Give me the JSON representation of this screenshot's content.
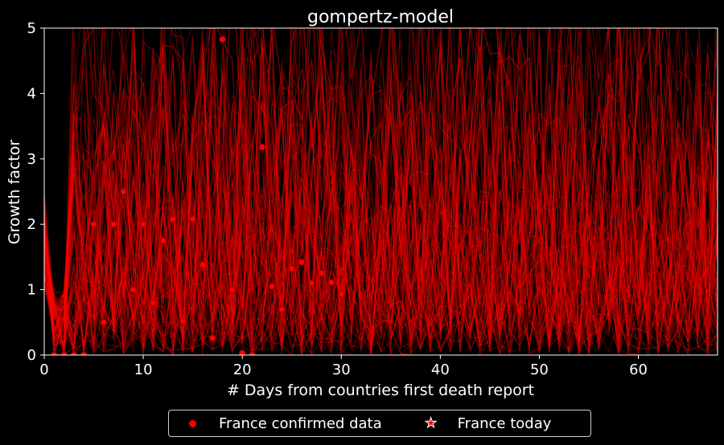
{
  "chart_data": {
    "type": "line",
    "title": "gompertz-model",
    "xlabel": "# Days from countries first death report",
    "ylabel": "Growth factor",
    "xlim": [
      0,
      68
    ],
    "ylim": [
      0,
      5
    ],
    "xticks": [
      0,
      10,
      20,
      30,
      40,
      50,
      60
    ],
    "yticks": [
      0,
      1,
      2,
      3,
      4,
      5
    ],
    "grid": false,
    "background": "#000000",
    "line_color": "#ff0000",
    "marker_color": "#ff0000",
    "legend_position": "bottom-center",
    "series": [
      {
        "name": "France confirmed data",
        "marker": "circle",
        "x": [
          0,
          1,
          2,
          3,
          4,
          5,
          6,
          7,
          8,
          9,
          10,
          11,
          12,
          13,
          14,
          15,
          16,
          17,
          18,
          19,
          20,
          21,
          22,
          23,
          24,
          25,
          26,
          27,
          28,
          29,
          30
        ],
        "y": [
          1.15,
          0.0,
          0.0,
          0.0,
          0.0,
          2.0,
          0.5,
          2.0,
          2.5,
          1.0,
          2.0,
          0.8,
          1.75,
          2.08,
          0.52,
          2.08,
          1.38,
          0.26,
          4.83,
          1.0,
          0.03,
          0.0,
          3.18,
          1.05,
          0.7,
          1.32,
          1.42,
          1.1,
          1.25,
          1.11,
          0.93
        ]
      },
      {
        "name": "France today",
        "marker": "star",
        "x": [],
        "y": []
      }
    ],
    "model_curves_note": "Dense overlay of sampled Gompertz model growth-factor curves (red, semi-transparent)"
  },
  "legend": {
    "items": [
      {
        "label": "France confirmed data"
      },
      {
        "label": "France today"
      }
    ]
  }
}
